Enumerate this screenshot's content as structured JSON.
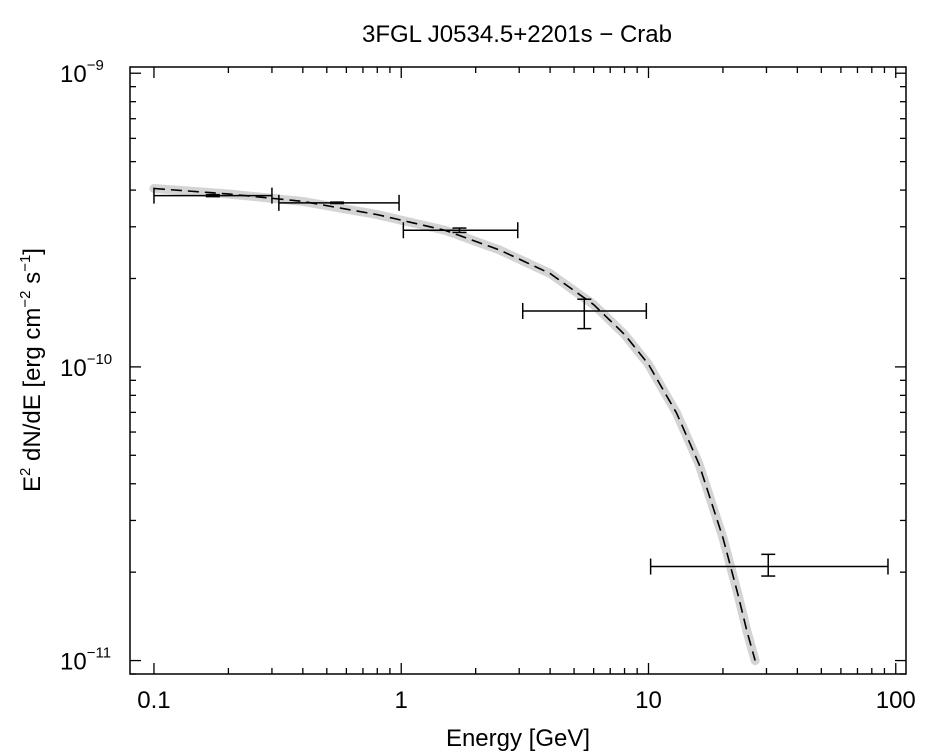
{
  "chart_data": {
    "type": "scatter",
    "title": "3FGL J0534.5+2201s − Crab",
    "xlabel": "Energy [GeV]",
    "ylabel": {
      "prefix": "E",
      "prefix_sup": "2",
      "mid": " dN/dE [erg cm",
      "mid_sup": "−2",
      "suffix": " s",
      "suffix_sup": "−1",
      "close": "]"
    },
    "x_scale": "log",
    "y_scale": "log",
    "xlim": [
      0.08,
      110
    ],
    "ylim": [
      9e-12,
      1.05e-09
    ],
    "x_ticks": [
      {
        "value": 0.1,
        "label": "0.1"
      },
      {
        "value": 1,
        "label": "1"
      },
      {
        "value": 10,
        "label": "10"
      },
      {
        "value": 100,
        "label": "100"
      }
    ],
    "y_ticks": [
      {
        "value": 1e-11,
        "base": "10",
        "exp": "−11"
      },
      {
        "value": 1e-10,
        "base": "10",
        "exp": "−10"
      },
      {
        "value": 1e-09,
        "base": "10",
        "exp": "−9"
      }
    ],
    "grid": false,
    "points": [
      {
        "x": 0.173,
        "y": 3.83e-10,
        "xmin": 0.1,
        "xmax": 0.3,
        "ymin": 3.8e-10,
        "ymax": 3.86e-10
      },
      {
        "x": 0.55,
        "y": 3.62e-10,
        "xmin": 0.32,
        "xmax": 0.98,
        "ymin": 3.6e-10,
        "ymax": 3.64e-10
      },
      {
        "x": 1.72,
        "y": 2.92e-10,
        "xmin": 1.02,
        "xmax": 2.96,
        "ymin": 2.87e-10,
        "ymax": 2.97e-10
      },
      {
        "x": 5.5,
        "y": 1.55e-10,
        "xmin": 3.1,
        "xmax": 9.8,
        "ymin": 1.35e-10,
        "ymax": 1.7e-10
      },
      {
        "x": 30.5,
        "y": 2.09e-11,
        "xmin": 10.2,
        "xmax": 93.0,
        "ymin": 1.94e-11,
        "ymax": 2.3e-11
      }
    ],
    "model": {
      "x": [
        0.1,
        0.2,
        0.4,
        0.8,
        1.5,
        2.5,
        4.0,
        6.0,
        8.0,
        10.0,
        13.0,
        16.0,
        20.0,
        23.0,
        25.0,
        27.0
      ],
      "y": [
        4.05e-10,
        3.88e-10,
        3.66e-10,
        3.3e-10,
        2.92e-10,
        2.5e-10,
        2.08e-10,
        1.63e-10,
        1.29e-10,
        1.02e-10,
        6.95e-11,
        4.67e-11,
        2.62e-11,
        1.68e-11,
        1.26e-11,
        1e-11
      ]
    },
    "band_color": "#d4d4d4",
    "model_color": "#000000"
  }
}
